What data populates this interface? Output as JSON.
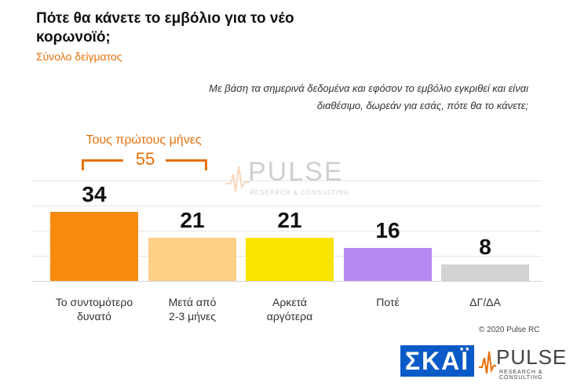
{
  "header": {
    "title": "Πότε θα κάνετε το εμβόλιο για το νέο κορωνοϊό;",
    "subtitle": "Σύνολο δείγματος",
    "question": "Με βάση τα σημερινά δεδομένα και εφόσον το εμβόλιο εγκριθεί και είναι διαθέσιμο, δωρεάν για εσάς, πότε θα το κάνετε;"
  },
  "annotation": {
    "label": "Τους πρώτους μήνες",
    "value": "55"
  },
  "watermark": {
    "name": "PULSE",
    "tagline": "RESEARCH & CONSULTING"
  },
  "footer": {
    "copyright": "© 2020 Pulse RC",
    "broadcaster": "ΣΚΑΪ",
    "pollster": "PULSE",
    "pollster_tagline": "RESEARCH & CONSULTING"
  },
  "colors": {
    "accent": "#e8700a",
    "broadcaster_bg": "#0a5ac8"
  },
  "chart_data": {
    "type": "bar",
    "title": "Πότε θα κάνετε το εμβόλιο για το νέο κορωνοϊό;",
    "categories": [
      "Το συντομότερο\nδυνατό",
      "Μετά από\n2-3 μήνες",
      "Αρκετά\nαργότερα",
      "Ποτέ",
      "ΔΓ/ΔΑ"
    ],
    "values": [
      34,
      21,
      21,
      16,
      8
    ],
    "colors": [
      "#f68b0f",
      "#fdcf87",
      "#f9e400",
      "#b48af2",
      "#d2d2d2"
    ],
    "ylim": [
      0,
      40
    ],
    "grid": true,
    "legend": "none"
  }
}
